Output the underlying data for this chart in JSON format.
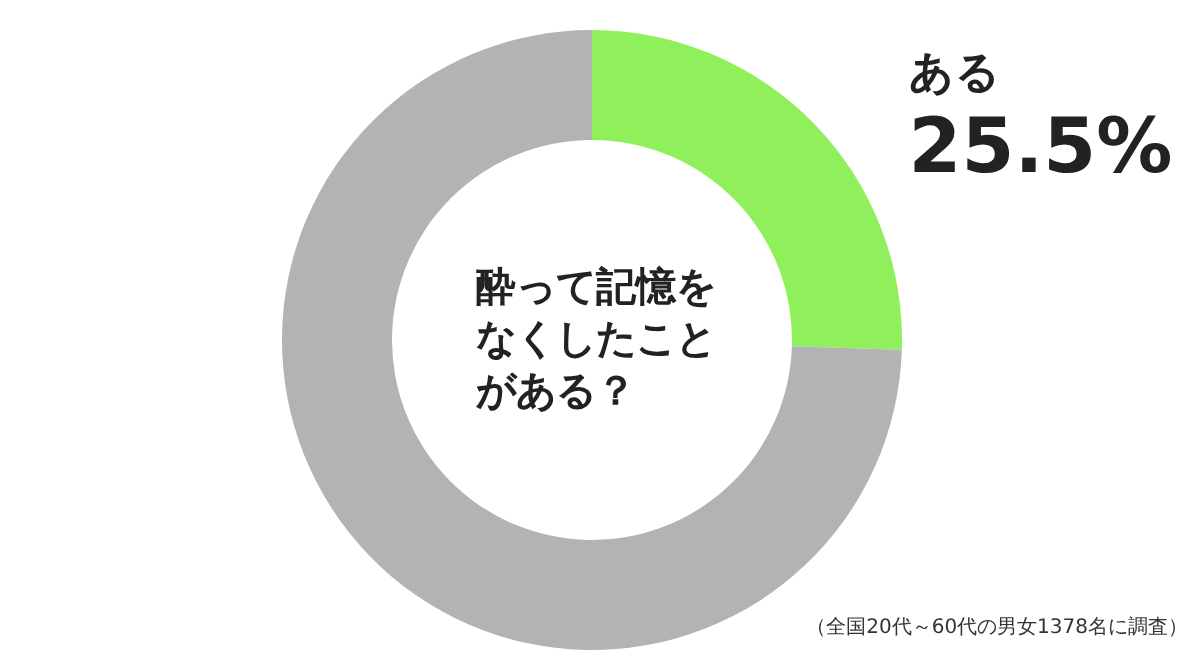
{
  "chart_data": {
    "type": "donut",
    "title": "酔って記憶をなくしたことがある？",
    "categories": [
      "ある",
      null
    ],
    "values": [
      25.5,
      74.5
    ],
    "colors": [
      "#8ff05c",
      "#b3b3b3"
    ],
    "value_labels": [
      "25.5%",
      null
    ],
    "legend": false,
    "annotations": [
      "（全国20代～60代の男女1378名に調査）"
    ]
  }
}
